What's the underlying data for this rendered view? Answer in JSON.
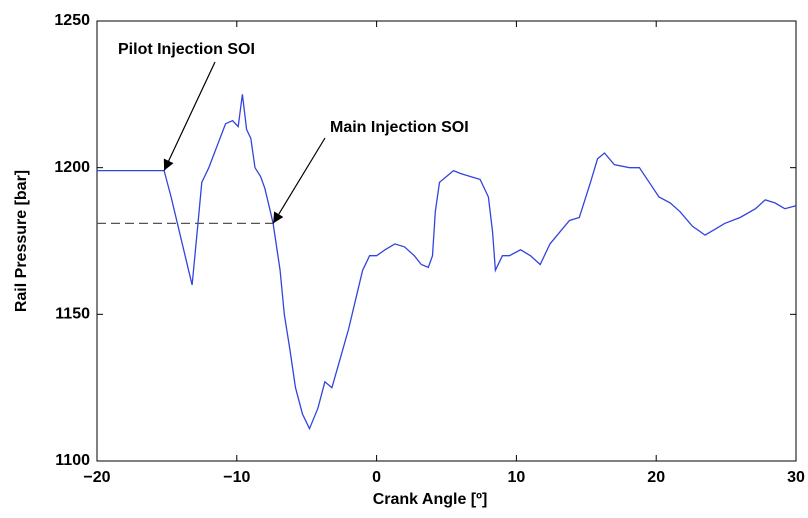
{
  "chart_data": {
    "type": "line",
    "xlabel": "Crank Angle [º]",
    "ylabel": "Rail Pressure [bar]",
    "color": "#3344dd",
    "x": [
      -20,
      -17.5,
      -15.2,
      -14.7,
      -14.2,
      -13.7,
      -13.2,
      -12.8,
      -12.5,
      -12.3,
      -12.0,
      -11.6,
      -11.2,
      -10.8,
      -10.3,
      -9.9,
      -9.6,
      -9.3,
      -9.0,
      -8.7,
      -8.3,
      -8.0,
      -7.6,
      -7.4,
      -6.9,
      -6.6,
      -6.2,
      -5.8,
      -5.3,
      -4.8,
      -4.2,
      -3.7,
      -3.2,
      -2.6,
      -2.0,
      -1.5,
      -1.0,
      -0.5,
      0,
      0.6,
      1.3,
      2.0,
      2.7,
      3.2,
      3.7,
      4.0,
      4.2,
      4.5,
      5.0,
      5.5,
      6.0,
      6.7,
      7.4,
      8.0,
      8.3,
      8.5,
      9.0,
      9.5,
      10.3,
      11.0,
      11.7,
      12.4,
      13.1,
      13.8,
      14.5,
      15.3,
      15.8,
      16.3,
      17.0,
      18.1,
      18.8,
      19.5,
      20.2,
      21.0,
      21.7,
      22.6,
      23.5,
      24.2,
      24.9,
      26.0,
      27.1,
      27.8,
      28.5,
      29.2,
      30
    ],
    "values": [
      1199,
      1199,
      1199,
      1190,
      1180,
      1170,
      1160,
      1180,
      1195,
      1197,
      1200,
      1205,
      1210,
      1215,
      1216,
      1214,
      1225,
      1213,
      1210,
      1200,
      1197,
      1193,
      1185,
      1181,
      1165,
      1150,
      1138,
      1125,
      1116,
      1111,
      1118,
      1127,
      1125,
      1135,
      1145,
      1155,
      1165,
      1170,
      1170,
      1172,
      1174,
      1173,
      1170,
      1167,
      1166,
      1170,
      1185,
      1195,
      1197,
      1199,
      1198,
      1197,
      1196,
      1190,
      1178,
      1165,
      1170,
      1170,
      1172,
      1170,
      1167,
      1174,
      1178,
      1182,
      1183,
      1195,
      1203,
      1205,
      1201,
      1200,
      1200,
      1195,
      1190,
      1188,
      1185,
      1180,
      1177,
      1179,
      1181,
      1183,
      1186,
      1189,
      1188,
      1186,
      1187
    ],
    "reference_line": {
      "y": 1181,
      "x": [
        -20,
        -7.4
      ]
    },
    "annotations": [
      {
        "text": "Pilot Injection SOI",
        "x": -15.2,
        "y": 1199
      },
      {
        "text": "Main Injection SOI",
        "x": -7.4,
        "y": 1181
      }
    ],
    "xlim": [
      -20,
      30
    ],
    "xticks": [
      {
        "value": -20,
        "label": "−20"
      },
      {
        "value": -10,
        "label": "−10"
      },
      0,
      10,
      20,
      30
    ],
    "ylim": [
      1100,
      1250
    ],
    "yticks": [
      1100,
      1150,
      1200,
      1250
    ]
  }
}
